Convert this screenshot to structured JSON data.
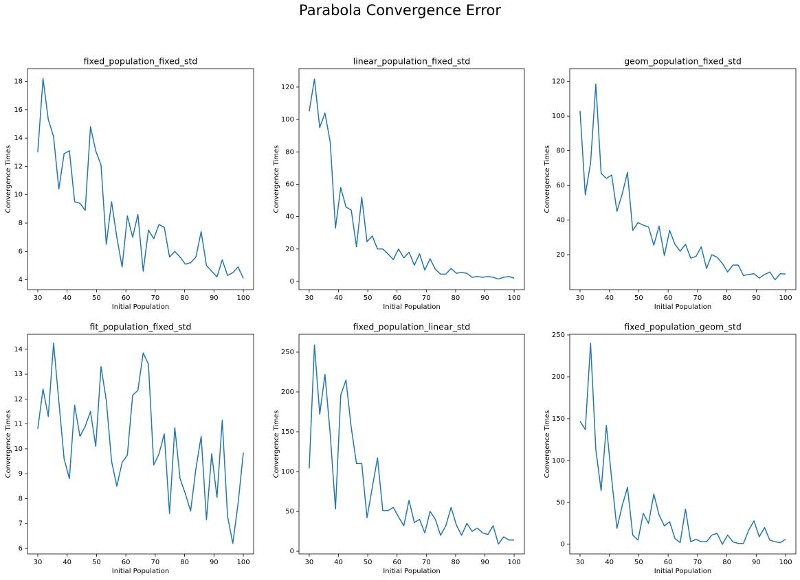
{
  "title": "Parabola Convergence Error",
  "chart_data": [
    {
      "type": "line",
      "title": "fixed_population_fixed_std",
      "xlabel": "Initial Population",
      "ylabel": "Convergence Times",
      "color": "#1f77b4",
      "x": [
        30,
        31.79,
        33.59,
        35.38,
        37.18,
        38.97,
        40.77,
        42.56,
        44.36,
        46.15,
        47.95,
        49.74,
        51.54,
        53.33,
        55.13,
        56.92,
        58.72,
        60.51,
        62.31,
        64.1,
        65.9,
        67.69,
        69.49,
        71.28,
        73.08,
        74.87,
        76.67,
        78.46,
        80.26,
        82.05,
        83.85,
        85.64,
        87.44,
        89.23,
        91.03,
        92.82,
        94.62,
        96.41,
        98.21,
        100
      ],
      "values": [
        13,
        18.2,
        15.3,
        14.1,
        10.4,
        12.9,
        13.1,
        9.5,
        9.4,
        8.9,
        14.8,
        13.1,
        12.1,
        6.5,
        9.5,
        7.0,
        4.9,
        8.5,
        7.0,
        8.6,
        4.6,
        7.5,
        6.9,
        7.9,
        7.7,
        5.6,
        6.0,
        5.6,
        5.1,
        5.2,
        5.6,
        7.4,
        5.0,
        4.6,
        4.2,
        5.4,
        4.3,
        4.5,
        4.9,
        4.1
      ],
      "xlim": [
        26.5,
        103.5
      ],
      "ylim": [
        3.3,
        18.9
      ],
      "xticks": [
        30,
        40,
        50,
        60,
        70,
        80,
        90,
        100
      ],
      "yticks": [
        4,
        6,
        8,
        10,
        12,
        14,
        16,
        18
      ]
    },
    {
      "type": "line",
      "title": "linear_population_fixed_std",
      "xlabel": "Initial Population",
      "ylabel": "Convergence Times",
      "color": "#1f77b4",
      "x": [
        30,
        31.79,
        33.59,
        35.38,
        37.18,
        38.97,
        40.77,
        42.56,
        44.36,
        46.15,
        47.95,
        49.74,
        51.54,
        53.33,
        55.13,
        56.92,
        58.72,
        60.51,
        62.31,
        64.1,
        65.9,
        67.69,
        69.49,
        71.28,
        73.08,
        74.87,
        76.67,
        78.46,
        80.26,
        82.05,
        83.85,
        85.64,
        87.44,
        89.23,
        91.03,
        92.82,
        94.62,
        96.41,
        98.21,
        100
      ],
      "values": [
        105,
        125,
        95,
        104,
        86,
        33,
        58,
        46,
        44,
        21.5,
        52,
        24.5,
        28,
        20,
        20,
        17,
        13.5,
        20,
        14.5,
        18,
        10,
        17,
        7,
        14,
        7.5,
        4.5,
        4.5,
        8,
        5,
        5.5,
        5,
        2.5,
        3,
        2.5,
        3,
        2.5,
        1.5,
        2.5,
        3,
        2
      ],
      "xlim": [
        26.5,
        103.5
      ],
      "ylim": [
        -5.1,
        131.4
      ],
      "xticks": [
        30,
        40,
        50,
        60,
        70,
        80,
        90,
        100
      ],
      "yticks": [
        0,
        20,
        40,
        60,
        80,
        100,
        120
      ]
    },
    {
      "type": "line",
      "title": "geom_population_fixed_std",
      "xlabel": "Initial Population",
      "ylabel": "Convergence Times",
      "color": "#1f77b4",
      "x": [
        30,
        31.79,
        33.59,
        35.38,
        37.18,
        38.97,
        40.77,
        42.56,
        44.36,
        46.15,
        47.95,
        49.74,
        51.54,
        53.33,
        55.13,
        56.92,
        58.72,
        60.51,
        62.31,
        64.1,
        65.9,
        67.69,
        69.49,
        71.28,
        73.08,
        74.87,
        76.67,
        78.46,
        80.26,
        82.05,
        83.85,
        85.64,
        87.44,
        89.23,
        91.03,
        92.82,
        94.62,
        96.41,
        98.21,
        100
      ],
      "values": [
        103,
        54.5,
        73,
        118.5,
        67,
        64,
        66,
        45,
        55,
        67.5,
        34,
        38.5,
        37,
        36,
        25.5,
        36.5,
        19.5,
        34,
        26,
        22,
        26,
        18,
        19,
        24.5,
        12,
        20,
        18.5,
        15,
        10,
        14,
        14,
        8,
        8.5,
        9,
        6.5,
        8.5,
        10,
        5.5,
        9,
        8.8
      ],
      "xlim": [
        26.5,
        103.5
      ],
      "ylim": [
        -0.2,
        127.4
      ],
      "xticks": [
        30,
        40,
        50,
        60,
        70,
        80,
        90,
        100
      ],
      "yticks": [
        20,
        40,
        60,
        80,
        100,
        120
      ]
    },
    {
      "type": "line",
      "title": "fit_population_fixed_std",
      "xlabel": "Initial Population",
      "ylabel": "Convergence Times",
      "color": "#1f77b4",
      "x": [
        30,
        31.79,
        33.59,
        35.38,
        37.18,
        38.97,
        40.77,
        42.56,
        44.36,
        46.15,
        47.95,
        49.74,
        51.54,
        53.33,
        55.13,
        56.92,
        58.72,
        60.51,
        62.31,
        64.1,
        65.9,
        67.69,
        69.49,
        71.28,
        73.08,
        74.87,
        76.67,
        78.46,
        80.26,
        82.05,
        83.85,
        85.64,
        87.44,
        89.23,
        91.03,
        92.82,
        94.62,
        96.41,
        98.21,
        100
      ],
      "values": [
        10.8,
        12.4,
        11.3,
        14.25,
        11.9,
        9.6,
        8.8,
        11.75,
        10.5,
        10.9,
        11.5,
        10.1,
        13.3,
        11.95,
        9.5,
        8.5,
        9.45,
        9.75,
        12.15,
        12.35,
        13.85,
        13.4,
        9.35,
        9.8,
        10.6,
        7.4,
        10.85,
        8.8,
        8.2,
        7.5,
        9.2,
        10.5,
        7.15,
        9.8,
        8.05,
        11.15,
        7.3,
        6.2,
        7.8,
        9.85
      ],
      "xlim": [
        26.5,
        103.5
      ],
      "ylim": [
        5.78,
        14.6
      ],
      "xticks": [
        30,
        40,
        50,
        60,
        70,
        80,
        90,
        100
      ],
      "yticks": [
        6,
        7,
        8,
        9,
        10,
        11,
        12,
        13,
        14
      ]
    },
    {
      "type": "line",
      "title": "fixed_population_linear_std",
      "xlabel": "Initial Population",
      "ylabel": "Convergence Times",
      "color": "#1f77b4",
      "x": [
        30,
        31.79,
        33.59,
        35.38,
        37.18,
        38.97,
        40.77,
        42.56,
        44.36,
        46.15,
        47.95,
        49.74,
        51.54,
        53.33,
        55.13,
        56.92,
        58.72,
        60.51,
        62.31,
        64.1,
        65.9,
        67.69,
        69.49,
        71.28,
        73.08,
        74.87,
        76.67,
        78.46,
        80.26,
        82.05,
        83.85,
        85.64,
        87.44,
        89.23,
        91.03,
        92.82,
        94.62,
        96.41,
        98.21,
        100
      ],
      "values": [
        104,
        259,
        172,
        222,
        147,
        53,
        196,
        215,
        155,
        110,
        110,
        42,
        80,
        117,
        51,
        51,
        55,
        43,
        32,
        64,
        36,
        40,
        23,
        50,
        40,
        20,
        32,
        55,
        33,
        20,
        35,
        25,
        29,
        23,
        21,
        32,
        9,
        18,
        14,
        14
      ],
      "xlim": [
        26.5,
        103.5
      ],
      "ylim": [
        -3.4,
        272.4
      ],
      "xticks": [
        30,
        40,
        50,
        60,
        70,
        80,
        90,
        100
      ],
      "yticks": [
        0,
        50,
        100,
        150,
        200,
        250
      ]
    },
    {
      "type": "line",
      "title": "fixed_population_geom_std",
      "xlabel": "Initial Population",
      "ylabel": "Convergence Times",
      "color": "#1f77b4",
      "x": [
        30,
        31.79,
        33.59,
        35.38,
        37.18,
        38.97,
        40.77,
        42.56,
        44.36,
        46.15,
        47.95,
        49.74,
        51.54,
        53.33,
        55.13,
        56.92,
        58.72,
        60.51,
        62.31,
        64.1,
        65.9,
        67.69,
        69.49,
        71.28,
        73.08,
        74.87,
        76.67,
        78.46,
        80.26,
        82.05,
        83.85,
        85.64,
        87.44,
        89.23,
        91.03,
        92.82,
        94.62,
        96.41,
        98.21,
        100
      ],
      "values": [
        147,
        137,
        240,
        113,
        64,
        142,
        78,
        19,
        46,
        68,
        11,
        5,
        37,
        25,
        60,
        35,
        22,
        27,
        7,
        2,
        42,
        3,
        6,
        3,
        3,
        11,
        13,
        0,
        11,
        3,
        1,
        1,
        17,
        28,
        9,
        20,
        5,
        3,
        2,
        6
      ],
      "xlim": [
        26.5,
        103.5
      ],
      "ylim": [
        -11.5,
        250.8
      ],
      "xticks": [
        30,
        40,
        50,
        60,
        70,
        80,
        90,
        100
      ],
      "yticks": [
        0,
        50,
        100,
        150,
        200,
        250
      ]
    }
  ]
}
